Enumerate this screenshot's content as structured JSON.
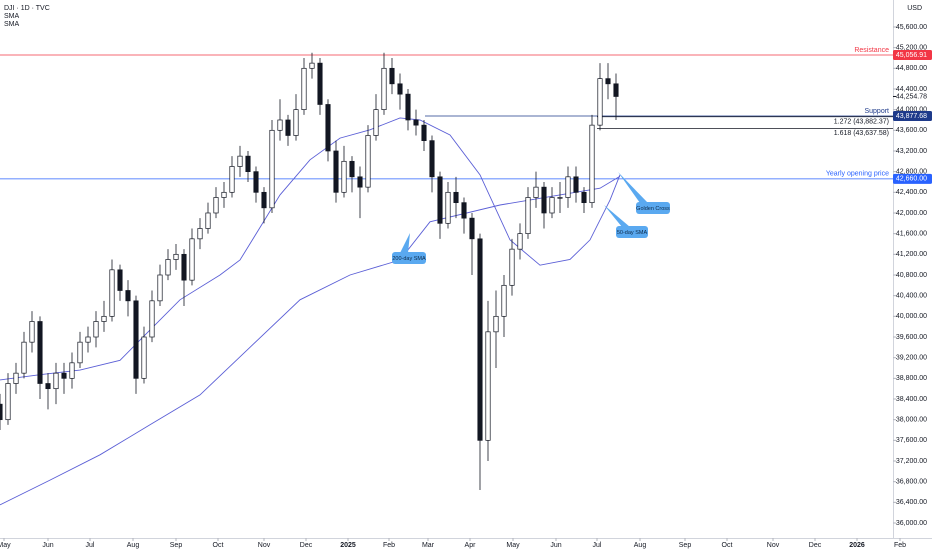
{
  "chart_data": {
    "type": "candlestick",
    "title": "DJI · 1D · TVC",
    "currency": "USD",
    "xlim": [
      0,
      466
    ],
    "ylim": [
      35710,
      46122
    ],
    "xticks": [
      {
        "value": 2,
        "label": "May"
      },
      {
        "value": 24,
        "label": "Jun"
      },
      {
        "value": 45,
        "label": "Jul"
      },
      {
        "value": 66.5,
        "label": "Aug"
      },
      {
        "value": 88,
        "label": "Sep"
      },
      {
        "value": 109,
        "label": "Oct"
      },
      {
        "value": 132,
        "label": "Nov"
      },
      {
        "value": 153,
        "label": "Dec"
      },
      {
        "value": 174,
        "label": "2025"
      },
      {
        "value": 194.5,
        "label": "Feb"
      },
      {
        "value": 214,
        "label": "Mar"
      },
      {
        "value": 235,
        "label": "Apr"
      },
      {
        "value": 256.5,
        "label": "May"
      },
      {
        "value": 278,
        "label": "Jun"
      },
      {
        "value": 298.5,
        "label": "Jul"
      },
      {
        "value": 320,
        "label": "Aug"
      },
      {
        "value": 342.5,
        "label": "Sep"
      },
      {
        "value": 363.5,
        "label": "Oct"
      },
      {
        "value": 386.5,
        "label": "Nov"
      },
      {
        "value": 407.5,
        "label": "Dec"
      },
      {
        "value": 428.5,
        "label": "2026"
      },
      {
        "value": 450,
        "label": "Feb"
      }
    ],
    "yticks": [
      {
        "value": 36000,
        "label": "36,000.00"
      },
      {
        "value": 36400,
        "label": "36,400.00"
      },
      {
        "value": 36800,
        "label": "36,800.00"
      },
      {
        "value": 37200,
        "label": "37,200.00"
      },
      {
        "value": 37600,
        "label": "37,600.00"
      },
      {
        "value": 38000,
        "label": "38,000.00"
      },
      {
        "value": 38400,
        "label": "38,400.00"
      },
      {
        "value": 38800,
        "label": "38,800.00"
      },
      {
        "value": 39200,
        "label": "39,200.00"
      },
      {
        "value": 39600,
        "label": "39,600.00"
      },
      {
        "value": 40000,
        "label": "40,000.00"
      },
      {
        "value": 40400,
        "label": "40,400.00"
      },
      {
        "value": 40800,
        "label": "40,800.00"
      },
      {
        "value": 41200,
        "label": "41,200.00"
      },
      {
        "value": 41600,
        "label": "41,600.00"
      },
      {
        "value": 42000,
        "label": "42,000.00"
      },
      {
        "value": 42400,
        "label": "42,400.00"
      },
      {
        "value": 42800,
        "label": "42,800.00"
      },
      {
        "value": 43200,
        "label": "43,200.00"
      },
      {
        "value": 43600,
        "label": "43,600.00"
      },
      {
        "value": 44000,
        "label": "44,000.00"
      },
      {
        "value": 44400,
        "label": "44,400.00"
      },
      {
        "value": 44800,
        "label": "44,800.00"
      },
      {
        "value": 45200,
        "label": "45,200.00"
      },
      {
        "value": 45600,
        "label": "45,600.00"
      }
    ],
    "grid": false,
    "up_color": "#ffffff",
    "down_color": "#131722",
    "candles": {
      "x": [
        0,
        4,
        8,
        12,
        16,
        20,
        24,
        28,
        32,
        36,
        40,
        44,
        48,
        52,
        56,
        60,
        64,
        68,
        72,
        76,
        80,
        84,
        88,
        92,
        96,
        100,
        104,
        108,
        112,
        116,
        120,
        124,
        128,
        132,
        136,
        140,
        144,
        148,
        152,
        156,
        160,
        164,
        168,
        172,
        176,
        180,
        184,
        188,
        192,
        196,
        200,
        204,
        208,
        212,
        216,
        220,
        224,
        228,
        232,
        236,
        240,
        244,
        248,
        252,
        256,
        260,
        264,
        268,
        272,
        276,
        280,
        284,
        288,
        292,
        296,
        300,
        304,
        308
      ],
      "open": [
        38300,
        38000,
        38700,
        38900,
        39500,
        39900,
        38700,
        38600,
        38900,
        38800,
        39100,
        39500,
        39600,
        39900,
        40000,
        40900,
        40500,
        40300,
        38800,
        39600,
        40300,
        40800,
        41100,
        41200,
        40700,
        41500,
        41700,
        42000,
        42300,
        42400,
        42900,
        43100,
        42800,
        42400,
        42100,
        43600,
        43800,
        43500,
        44000,
        44800,
        44900,
        44100,
        43200,
        42400,
        43000,
        42700,
        42500,
        43500,
        44000,
        44800,
        44500,
        44300,
        43800,
        43700,
        43400,
        42700,
        41800,
        42400,
        42200,
        41900,
        41500,
        37600,
        39700,
        40000,
        40600,
        41300,
        41600,
        42300,
        42500,
        42000,
        42300,
        42300,
        42700,
        42400,
        42200,
        43700,
        44600,
        44500
      ],
      "high": [
        38500,
        38900,
        39100,
        39700,
        40100,
        40000,
        38900,
        39100,
        39100,
        39300,
        39700,
        39800,
        40100,
        40300,
        41100,
        41000,
        40700,
        40400,
        39800,
        40500,
        41000,
        41300,
        41400,
        41300,
        41700,
        41900,
        42200,
        42500,
        42600,
        43100,
        43300,
        43200,
        42900,
        42500,
        43800,
        44200,
        43900,
        44300,
        45000,
        45100,
        45000,
        44200,
        43400,
        43300,
        43100,
        42900,
        43700,
        44300,
        45100,
        45000,
        44700,
        44400,
        44000,
        43800,
        43500,
        42800,
        42600,
        42700,
        42300,
        42000,
        41600,
        40300,
        40500,
        40800,
        41500,
        41800,
        42500,
        42800,
        42600,
        42500,
        42600,
        42900,
        42900,
        42500,
        43900,
        44900,
        44900,
        44700
      ],
      "low": [
        37800,
        37900,
        38500,
        38800,
        39300,
        38400,
        38200,
        38300,
        38500,
        38600,
        39000,
        39300,
        39400,
        39700,
        39900,
        40300,
        40000,
        38500,
        38700,
        39500,
        40200,
        40700,
        40900,
        40200,
        40600,
        41300,
        41600,
        41900,
        42100,
        42300,
        42700,
        42600,
        42200,
        41800,
        42000,
        43400,
        43300,
        43400,
        43900,
        44600,
        43900,
        43000,
        42200,
        42300,
        42400,
        41900,
        42400,
        43400,
        43900,
        44300,
        44000,
        43600,
        43500,
        43200,
        42400,
        41500,
        41700,
        41900,
        41600,
        40800,
        36640,
        37200,
        39000,
        39600,
        40400,
        41100,
        41500,
        42100,
        41700,
        41900,
        42000,
        42100,
        42200,
        42000,
        42100,
        43600,
        44200,
        43800
      ],
      "close": [
        38000,
        38700,
        38900,
        39500,
        39900,
        38700,
        38600,
        38900,
        38800,
        39100,
        39500,
        39600,
        39900,
        40000,
        40900,
        40500,
        40300,
        38800,
        39600,
        40300,
        40800,
        41100,
        41200,
        40700,
        41500,
        41700,
        42000,
        42300,
        42400,
        42900,
        43100,
        42800,
        42400,
        42100,
        43600,
        43800,
        43500,
        44000,
        44800,
        44900,
        44100,
        43200,
        42400,
        43000,
        42700,
        42500,
        43500,
        44000,
        44800,
        44500,
        44300,
        43800,
        43700,
        43400,
        42700,
        41800,
        42400,
        42200,
        41900,
        41500,
        37600,
        39700,
        40000,
        40600,
        41300,
        41600,
        42300,
        42500,
        42000,
        42300,
        42300,
        42700,
        42400,
        42200,
        43700,
        44600,
        44500,
        44254.78
      ]
    },
    "last_price": {
      "value": 44254.78,
      "label": "44,254.78"
    },
    "series": [
      {
        "name": "SMA",
        "color": "#5b5fd6",
        "x": [
          0,
          20,
          40,
          60,
          70,
          90,
          110,
          120,
          140,
          155,
          170,
          185,
          200,
          210,
          225,
          240,
          255,
          270,
          285,
          295,
          305,
          310
        ],
        "values": [
          38770,
          38870,
          38960,
          39150,
          39540,
          40320,
          40800,
          41090,
          42350,
          43030,
          43450,
          43610,
          43840,
          43800,
          43510,
          42740,
          41480,
          40990,
          41100,
          41480,
          42250,
          42740
        ]
      },
      {
        "name": "SMA",
        "color": "#5b5fd6",
        "x": [
          0,
          25,
          50,
          75,
          100,
          125,
          150,
          175,
          200,
          215,
          250,
          300,
          310
        ],
        "values": [
          36350,
          36830,
          37320,
          37900,
          38480,
          39400,
          40320,
          40800,
          41090,
          41830,
          42155,
          42480,
          42710
        ]
      }
    ],
    "levels": [
      {
        "label": "Resistance",
        "value": 45056.91,
        "value_label": "45,056.91",
        "color": "#f23645"
      },
      {
        "label": "Support",
        "value": 43877.68,
        "value_label": "43,877.68",
        "color": "#1e3a8a"
      },
      {
        "label": "Yearly opening price",
        "value": 42660,
        "value_label": "42,660.00",
        "color": "#2962ff"
      }
    ],
    "fib_levels": [
      {
        "label": "1.272 (43,882.37)",
        "value": 43882.37
      },
      {
        "label": "1.618 (43,637.58)",
        "value": 43637.58
      }
    ],
    "annotations": [
      "Golden Cross",
      "50-day SMA",
      "200-day SMA"
    ]
  }
}
